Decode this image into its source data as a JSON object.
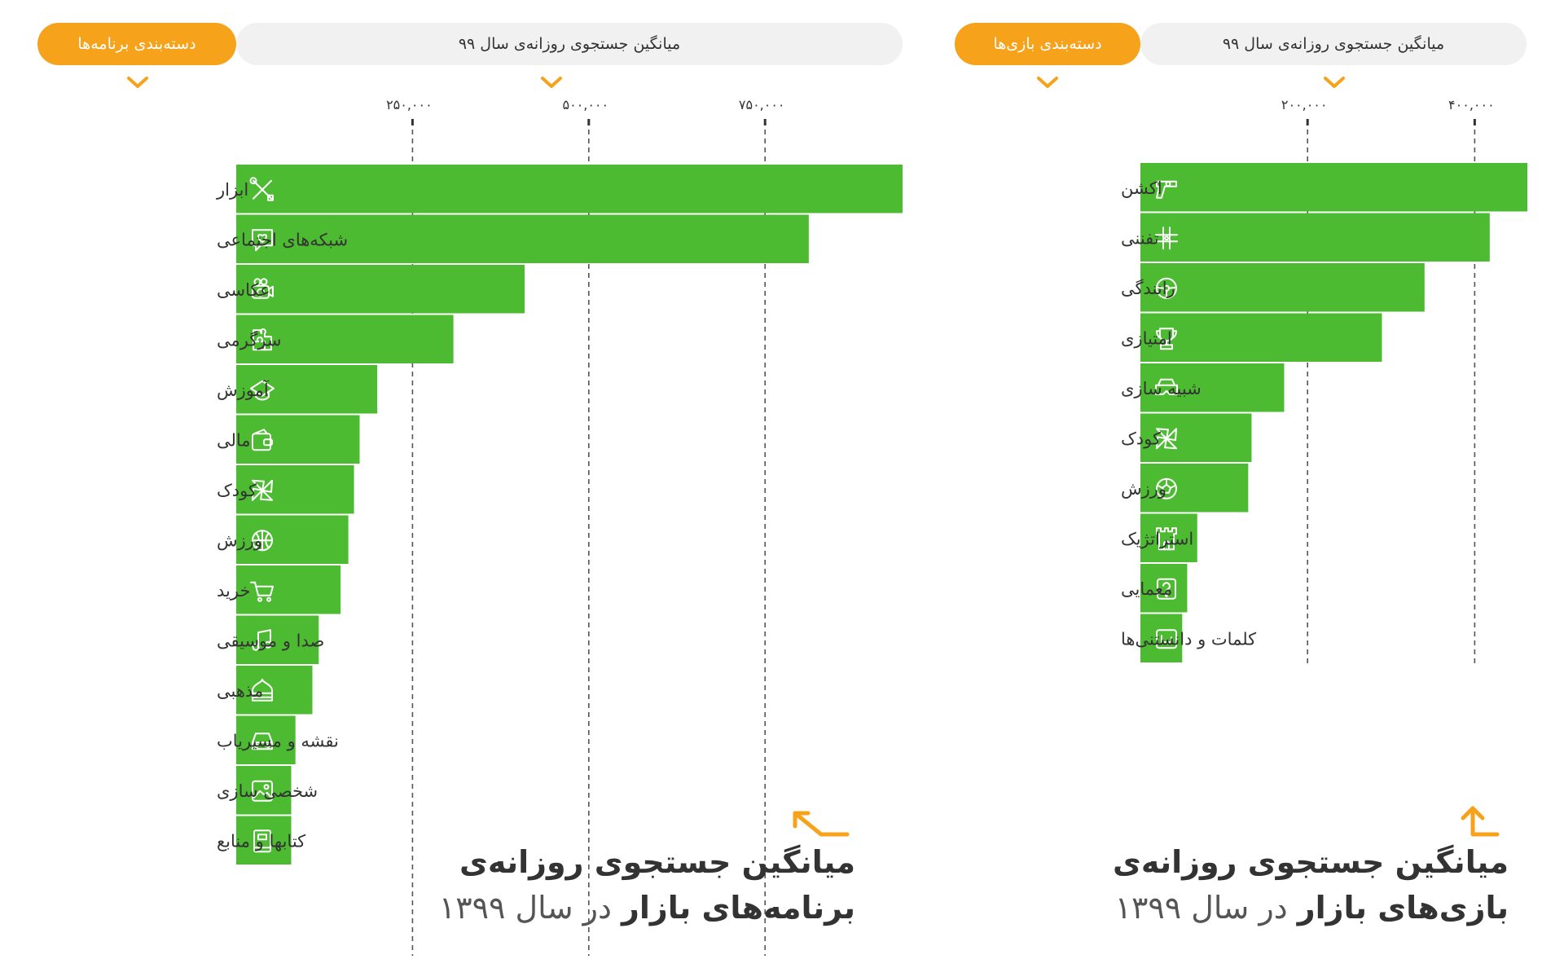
{
  "panels": {
    "apps": {
      "header_text": "میانگین جستجوی روزانه‌ی سال ۹۹",
      "category_pill": "دسته‌بندی برنامه‌ها",
      "bottom_title_line1": "میانگین جستجوی روزانه‌ی",
      "bottom_title_line2_bold": "برنامه‌های بازار",
      "bottom_title_line2_rest": "در سال ۱۳۹۹"
    },
    "games": {
      "header_text": "میانگین جستجوی روزانه‌ی سال ۹۹",
      "category_pill": "دسته‌بندی بازی‌ها",
      "bottom_title_line1": "میانگین جستجوی روزانه‌ی",
      "bottom_title_line2_bold": "بازی‌های بازار",
      "bottom_title_line2_rest": "در سال ۱۳۹۹"
    }
  },
  "colors": {
    "bar": "#4cbb31",
    "accent": "#f7a21b",
    "header_bg": "#f1f1f1",
    "text": "#333333",
    "icon_stroke": "#ffffff"
  },
  "chart_data": [
    {
      "type": "bar",
      "orientation": "horizontal",
      "categories": [
        "ابزار",
        "شبکه‌های اجتماعی",
        "عکاسی",
        "سرگرمی",
        "آموزش",
        "مالی",
        "کودک",
        "ورزش",
        "خرید",
        "صدا و موسیقی",
        "مذهبی",
        "نقشه و مسیریاب",
        "شخصی سازی",
        "کتابها و منابع"
      ],
      "icons": [
        "tools-icon",
        "social-chat-icon",
        "camera-icon",
        "puzzle-icon",
        "graduation-cap-icon",
        "wallet-icon",
        "pinwheel-icon",
        "basketball-icon",
        "cart-icon",
        "music-note-icon",
        "mosque-icon",
        "car-icon",
        "image-icon",
        "book-icon"
      ],
      "values": [
        945000,
        812000,
        409000,
        308000,
        200000,
        175000,
        167000,
        159000,
        148000,
        117000,
        108000,
        84000,
        78000,
        78000
      ],
      "xlim": [
        0,
        945000
      ],
      "ticks": [
        250000,
        500000,
        750000
      ],
      "tick_labels": [
        "۲۵۰,۰۰۰",
        "۵۰۰,۰۰۰",
        "۷۵۰,۰۰۰"
      ],
      "grid": "dashed-vertical"
    },
    {
      "type": "bar",
      "orientation": "horizontal",
      "categories": [
        "اکشن",
        "تفننی",
        "رانندگی",
        "امتیازی",
        "شبیه سازی",
        "کودک",
        "ورزش",
        "استراتژیک",
        "معمایی",
        "کلمات و دانستنی‌ها"
      ],
      "icons": [
        "revolver-icon",
        "tic-tac-toe-icon",
        "steering-wheel-icon",
        "trophy-icon",
        "vr-goggles-icon",
        "pinwheel-icon",
        "soccer-ball-icon",
        "castle-tower-icon",
        "question-mark-icon",
        "alphabet-icon"
      ],
      "values": [
        463000,
        418000,
        340000,
        289000,
        172000,
        133000,
        129000,
        68000,
        56000,
        50000
      ],
      "xlim": [
        0,
        463000
      ],
      "ticks": [
        200000,
        400000
      ],
      "tick_labels": [
        "۲۰۰,۰۰۰",
        "۴۰۰,۰۰۰"
      ],
      "grid": "dashed-vertical"
    }
  ]
}
